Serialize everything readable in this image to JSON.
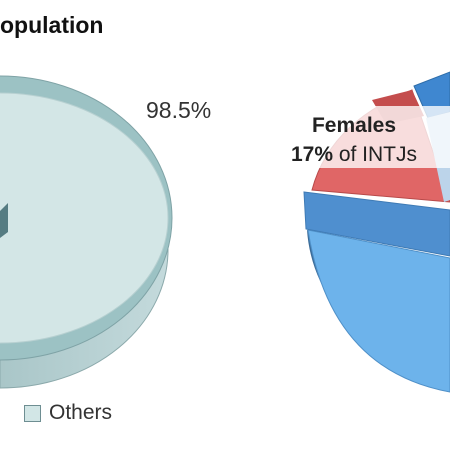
{
  "title": "opulation",
  "chart_data": [
    {
      "type": "pie",
      "slices": [
        {
          "label": "Others",
          "value": 98.5,
          "label_text": "98.5%",
          "color": "#d2e6e6"
        }
      ]
    },
    {
      "type": "pie",
      "slices": [
        {
          "label": "Females",
          "value": 17,
          "color": "#e06666"
        }
      ],
      "annotation": {
        "heading": "Females",
        "value_text": "17%",
        "suffix": " of INTJs"
      },
      "colors": [
        "#e06666",
        "#5c9fd6",
        "#6db3eb",
        "#bcd4ea"
      ]
    }
  ],
  "legend": [
    {
      "label": "Others",
      "color": "#d2e6e6"
    }
  ]
}
